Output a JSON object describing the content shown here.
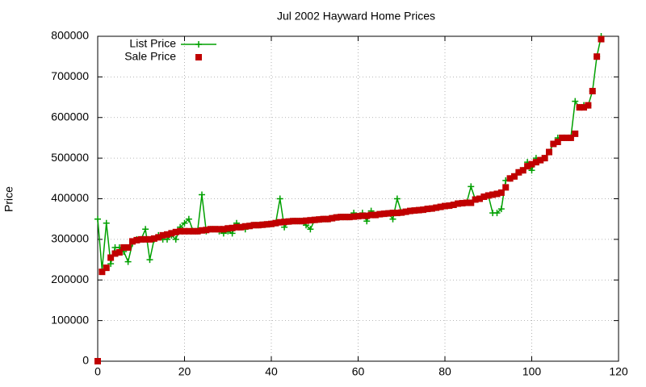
{
  "chart_data": {
    "type": "line",
    "title": "Jul 2002 Hayward Home Prices",
    "y_label": "Price",
    "x": [
      0,
      1,
      2,
      3,
      4,
      5,
      6,
      7,
      8,
      9,
      10,
      11,
      12,
      13,
      14,
      15,
      16,
      17,
      18,
      19,
      20,
      21,
      22,
      23,
      24,
      25,
      26,
      27,
      28,
      29,
      30,
      31,
      32,
      33,
      34,
      35,
      36,
      37,
      38,
      39,
      40,
      41,
      42,
      43,
      44,
      45,
      46,
      47,
      48,
      49,
      50,
      51,
      52,
      53,
      54,
      55,
      56,
      57,
      58,
      59,
      60,
      61,
      62,
      63,
      64,
      65,
      66,
      67,
      68,
      69,
      70,
      71,
      72,
      73,
      74,
      75,
      76,
      77,
      78,
      79,
      80,
      81,
      82,
      83,
      84,
      85,
      86,
      87,
      88,
      89,
      90,
      91,
      92,
      93,
      94,
      95,
      96,
      97,
      98,
      99,
      100,
      101,
      102,
      103,
      104,
      105,
      106,
      107,
      108,
      109,
      110,
      111,
      112,
      113,
      114,
      115,
      116
    ],
    "series": [
      {
        "name": "List Price",
        "color": "#00a000",
        "line": true,
        "marker": "plus",
        "values": [
          350000,
          225000,
          340000,
          240000,
          280000,
          280000,
          270000,
          245000,
          290000,
          300000,
          300000,
          325000,
          250000,
          300000,
          310000,
          300000,
          300000,
          310000,
          300000,
          330000,
          340000,
          350000,
          320000,
          320000,
          410000,
          320000,
          325000,
          325000,
          320000,
          315000,
          320000,
          315000,
          340000,
          330000,
          325000,
          333000,
          335000,
          335000,
          336000,
          337000,
          338000,
          340000,
          400000,
          330000,
          344000,
          345000,
          345000,
          345000,
          335000,
          325000,
          348000,
          349000,
          350000,
          350000,
          352000,
          354000,
          355000,
          355000,
          355000,
          365000,
          357000,
          365000,
          345000,
          370000,
          360000,
          362000,
          363000,
          364000,
          350000,
          400000,
          366000,
          368000,
          370000,
          371000,
          372000,
          373000,
          375000,
          376000,
          378000,
          380000,
          382000,
          383000,
          385000,
          388000,
          389000,
          390000,
          430000,
          398000,
          400000,
          405000,
          408000,
          365000,
          365000,
          375000,
          445000,
          450000,
          455000,
          465000,
          470000,
          490000,
          470000,
          500000,
          495000,
          500000,
          515000,
          535000,
          550000,
          550000,
          550000,
          550000,
          640000,
          625000,
          630000,
          630000,
          665000,
          750000,
          800000
        ]
      },
      {
        "name": "Sale Price",
        "color": "#c00000",
        "line": false,
        "marker": "square",
        "values": [
          0,
          220000,
          230000,
          255000,
          265000,
          268000,
          280000,
          280000,
          295000,
          298000,
          300000,
          300000,
          300000,
          302000,
          305000,
          310000,
          312000,
          315000,
          318000,
          320000,
          320000,
          320000,
          320000,
          320000,
          322000,
          323000,
          325000,
          325000,
          325000,
          325000,
          327000,
          328000,
          330000,
          330000,
          332000,
          333000,
          335000,
          335000,
          336000,
          337000,
          338000,
          340000,
          342000,
          343000,
          344000,
          345000,
          345000,
          345000,
          346000,
          347000,
          348000,
          349000,
          350000,
          350000,
          352000,
          354000,
          355000,
          355000,
          355000,
          356000,
          357000,
          358000,
          358000,
          360000,
          360000,
          362000,
          363000,
          364000,
          365000,
          365000,
          366000,
          368000,
          370000,
          371000,
          372000,
          373000,
          375000,
          376000,
          378000,
          380000,
          382000,
          383000,
          385000,
          388000,
          389000,
          390000,
          390000,
          398000,
          400000,
          405000,
          408000,
          410000,
          412000,
          415000,
          428000,
          450000,
          455000,
          465000,
          470000,
          480000,
          485000,
          490000,
          495000,
          500000,
          515000,
          535000,
          540000,
          550000,
          550000,
          550000,
          560000,
          625000,
          625000,
          630000,
          665000,
          750000,
          793000
        ]
      }
    ],
    "xlim": [
      0,
      120
    ],
    "xticks": [
      0,
      20,
      40,
      60,
      80,
      100,
      120
    ],
    "ylim": [
      0,
      800000
    ],
    "yticks": [
      0,
      100000,
      200000,
      300000,
      400000,
      500000,
      600000,
      700000,
      800000
    ],
    "grid": true,
    "legend": "top-left"
  }
}
